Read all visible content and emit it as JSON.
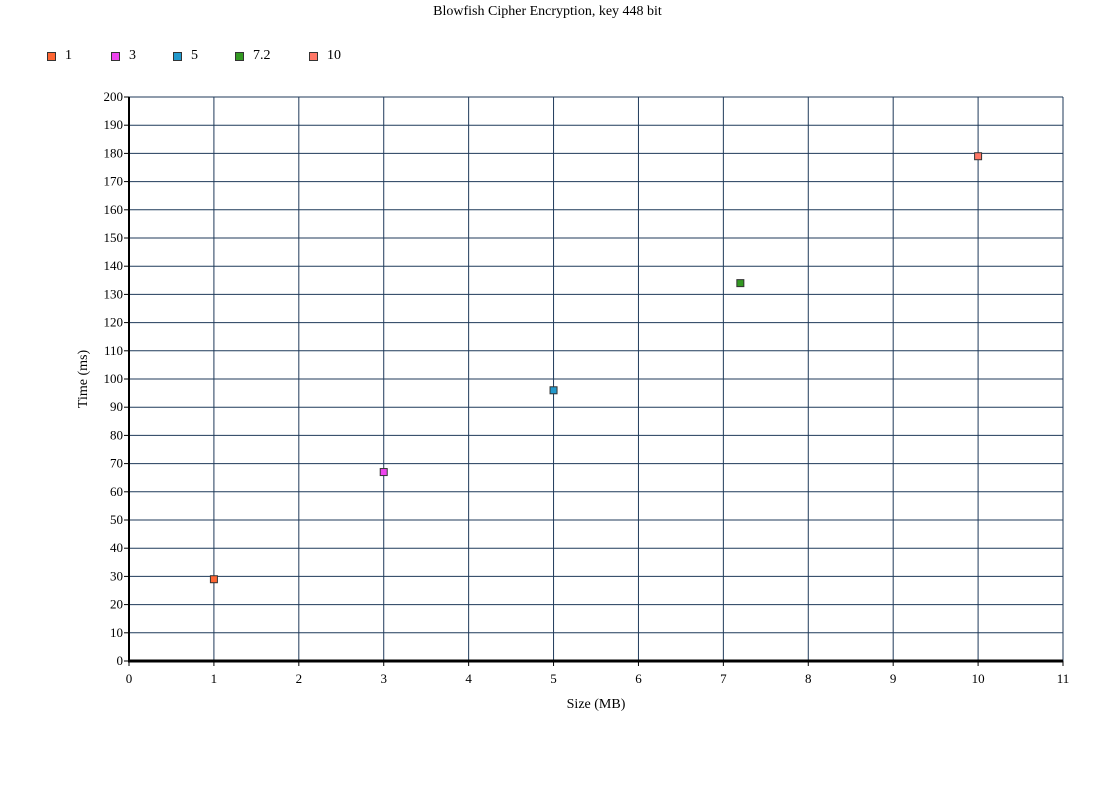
{
  "chart_data": {
    "type": "scatter",
    "title": "Blowfish Cipher Encryption, key 448 bit",
    "xlabel": "Size (MB)",
    "ylabel": "Time (ms)",
    "xlim": [
      0,
      11
    ],
    "ylim": [
      0,
      200
    ],
    "xticks": [
      "0",
      "1",
      "2",
      "3",
      "4",
      "5",
      "6",
      "7",
      "8",
      "9",
      "10",
      "11"
    ],
    "yticks": [
      "0",
      "10",
      "20",
      "30",
      "40",
      "50",
      "60",
      "70",
      "80",
      "90",
      "100",
      "110",
      "120",
      "130",
      "140",
      "150",
      "160",
      "170",
      "180",
      "190",
      "200"
    ],
    "grid": true,
    "legend_position": "top-left",
    "series": [
      {
        "name": "1",
        "color": "#ff6633",
        "points": [
          [
            1,
            29
          ]
        ]
      },
      {
        "name": "3",
        "color": "#ee44ee",
        "points": [
          [
            3,
            67
          ]
        ]
      },
      {
        "name": "5",
        "color": "#2299cc",
        "points": [
          [
            5,
            96
          ]
        ]
      },
      {
        "name": "7.2",
        "color": "#339922",
        "points": [
          [
            7.2,
            134
          ]
        ]
      },
      {
        "name": "10",
        "color": "#ff7766",
        "points": [
          [
            10,
            179
          ]
        ]
      }
    ]
  }
}
